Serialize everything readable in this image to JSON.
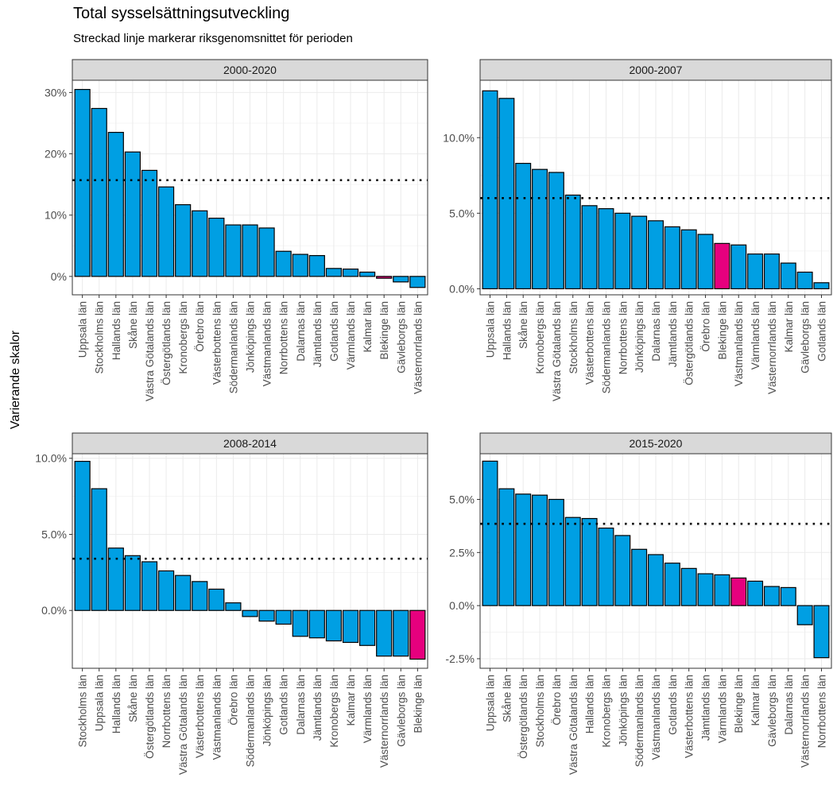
{
  "title": "Total sysselsättningsutveckling",
  "subtitle": "Streckad linje markerar riksgenomsnittet för perioden",
  "ylabel": "Varierande skalor",
  "colors": {
    "bar": "#009FE3",
    "highlight": "#E6007E",
    "bar_outline": "#000000",
    "strip": "#D9D9D9",
    "grid": "#EBEBEB",
    "average_line": "#000000"
  },
  "chart_data": [
    {
      "type": "bar",
      "title": "2000-2020",
      "highlight": "Blekinge län",
      "average": 15.7,
      "ylim": [
        -3.0,
        32.0
      ],
      "yticks": [
        0,
        10,
        20,
        30
      ],
      "ytick_labels": [
        "0%",
        "10%",
        "20%",
        "30%"
      ],
      "categories": [
        "Uppsala län",
        "Stockholms län",
        "Hallands län",
        "Skåne län",
        "Västra Götalands län",
        "Östergötlands län",
        "Kronobergs län",
        "Örebro län",
        "Västerbottens län",
        "Södermanlands län",
        "Jönköpings län",
        "Västmanlands län",
        "Norrbottens län",
        "Dalarnas län",
        "Jämtlands län",
        "Gotlands län",
        "Värmlands län",
        "Kalmar län",
        "Blekinge län",
        "Gävleborgs län",
        "Västernorrlands län"
      ],
      "values": [
        30.5,
        27.4,
        23.5,
        20.3,
        17.3,
        14.6,
        11.7,
        10.7,
        9.5,
        8.4,
        8.4,
        7.9,
        4.1,
        3.6,
        3.4,
        1.3,
        1.2,
        0.7,
        -0.3,
        -0.9,
        -1.8
      ]
    },
    {
      "type": "bar",
      "title": "2000-2007",
      "highlight": "Blekinge län",
      "average": 6.0,
      "ylim": [
        -0.4,
        13.8
      ],
      "yticks": [
        0,
        5,
        10
      ],
      "ytick_labels": [
        "0.0%",
        "5.0%",
        "10.0%"
      ],
      "categories": [
        "Uppsala län",
        "Hallands län",
        "Skåne län",
        "Kronobergs län",
        "Västra Götalands län",
        "Stockholms län",
        "Västerbottens län",
        "Södermanlands län",
        "Norrbottens län",
        "Jönköpings län",
        "Dalarnas län",
        "Jämtlands län",
        "Östergötlands län",
        "Örebro län",
        "Blekinge län",
        "Västmanlands län",
        "Värmlands län",
        "Västernorrlands län",
        "Kalmar län",
        "Gävleborgs län",
        "Gotlands län"
      ],
      "values": [
        13.1,
        12.6,
        8.3,
        7.9,
        7.7,
        6.2,
        5.5,
        5.3,
        5.0,
        4.8,
        4.5,
        4.1,
        3.9,
        3.6,
        3.0,
        2.9,
        2.3,
        2.3,
        1.7,
        1.1,
        0.4
      ]
    },
    {
      "type": "bar",
      "title": "2008-2014",
      "highlight": "Blekinge län",
      "average": 3.4,
      "ylim": [
        -3.8,
        10.3
      ],
      "yticks": [
        0,
        5,
        10
      ],
      "ytick_labels": [
        "0.0%",
        "5.0%",
        "10.0%"
      ],
      "categories": [
        "Stockholms län",
        "Uppsala län",
        "Hallands län",
        "Skåne län",
        "Östergötlands län",
        "Norrbottens län",
        "Västra Götalands län",
        "Västerbottens län",
        "Västmanlands län",
        "Örebro län",
        "Södermanlands län",
        "Jönköpings län",
        "Gotlands län",
        "Dalarnas län",
        "Jämtlands län",
        "Kronobergs län",
        "Kalmar län",
        "Värmlands län",
        "Västernorrlands län",
        "Gävleborgs län",
        "Blekinge län"
      ],
      "values": [
        9.8,
        8.0,
        4.1,
        3.6,
        3.2,
        2.6,
        2.3,
        1.9,
        1.4,
        0.5,
        -0.4,
        -0.7,
        -0.9,
        -1.7,
        -1.8,
        -2.0,
        -2.1,
        -2.3,
        -3.0,
        -3.0,
        -3.2
      ]
    },
    {
      "type": "bar",
      "title": "2015-2020",
      "highlight": "Blekinge län",
      "average": 3.85,
      "ylim": [
        -2.95,
        7.15
      ],
      "yticks": [
        -2.5,
        0,
        2.5,
        5
      ],
      "ytick_labels": [
        "-2.5%",
        "0.0%",
        "2.5%",
        "5.0%"
      ],
      "categories": [
        "Uppsala län",
        "Skåne län",
        "Östergötlands län",
        "Stockholms län",
        "Örebro län",
        "Västra Götalands län",
        "Hallands län",
        "Kronobergs län",
        "Jönköpings län",
        "Södermanlands län",
        "Västmanlands län",
        "Gotlands län",
        "Västerbottens län",
        "Jämtlands län",
        "Värmlands län",
        "Blekinge län",
        "Kalmar län",
        "Gävleborgs län",
        "Dalarnas län",
        "Västernorrlands län",
        "Norrbottens län"
      ],
      "values": [
        6.8,
        5.5,
        5.25,
        5.2,
        5.0,
        4.15,
        4.1,
        3.65,
        3.3,
        2.65,
        2.4,
        2.0,
        1.75,
        1.5,
        1.45,
        1.3,
        1.15,
        0.9,
        0.85,
        -0.9,
        -2.45
      ]
    }
  ]
}
